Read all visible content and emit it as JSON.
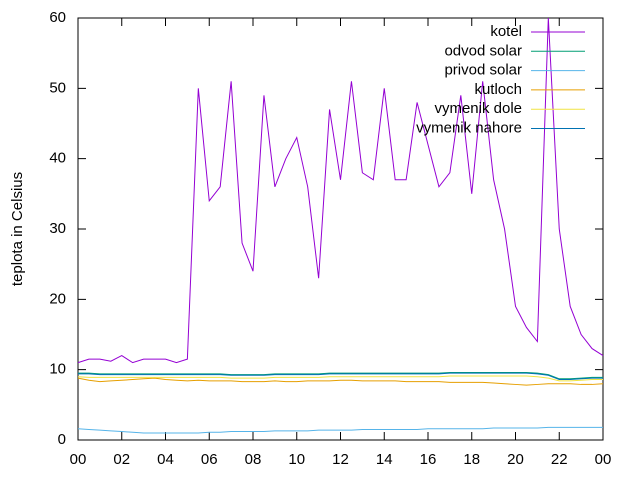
{
  "chart_data": {
    "type": "line",
    "ylabel": "teplota in Celsius",
    "x": [
      0,
      0.5,
      1,
      1.5,
      2,
      2.5,
      3,
      3.5,
      4,
      4.5,
      5,
      5.5,
      6,
      6.5,
      7,
      7.5,
      8,
      8.5,
      9,
      9.5,
      10,
      10.5,
      11,
      11.5,
      12,
      12.5,
      13,
      13.5,
      14,
      14.5,
      15,
      15.5,
      16,
      16.5,
      17,
      17.5,
      18,
      18.5,
      19,
      19.5,
      20,
      20.5,
      21,
      21.5,
      22,
      22.5,
      23,
      23.5,
      24
    ],
    "xlim": [
      0,
      24
    ],
    "xticks": [
      {
        "value": 0,
        "label": "00"
      },
      {
        "value": 2,
        "label": "02"
      },
      {
        "value": 4,
        "label": "04"
      },
      {
        "value": 6,
        "label": "06"
      },
      {
        "value": 8,
        "label": "08"
      },
      10,
      12,
      14,
      16,
      18,
      20,
      22,
      {
        "value": 24,
        "label": "00"
      }
    ],
    "ylim": [
      0,
      60
    ],
    "yticks": [
      0,
      10,
      20,
      30,
      40,
      50,
      60
    ],
    "legend": "top-right",
    "series": [
      {
        "name": "kotel",
        "color": "#9400d3",
        "values": [
          11,
          11.5,
          11.5,
          11.2,
          12,
          11,
          11.5,
          11.5,
          11.5,
          11,
          11.5,
          50,
          34,
          36,
          51,
          28,
          24,
          49,
          36,
          40,
          43,
          36,
          23,
          47,
          37,
          51,
          38,
          37,
          50,
          37,
          37,
          48,
          42,
          36,
          38,
          49,
          35,
          51,
          37,
          30,
          19,
          16,
          14,
          60,
          30,
          19,
          15,
          13,
          12
        ]
      },
      {
        "name": "odvod solar",
        "color": "#009e73",
        "values": [
          9.5,
          9.5,
          9.4,
          9.4,
          9.4,
          9.4,
          9.4,
          9.4,
          9.4,
          9.4,
          9.4,
          9.4,
          9.4,
          9.4,
          9.3,
          9.3,
          9.3,
          9.3,
          9.4,
          9.4,
          9.4,
          9.4,
          9.4,
          9.5,
          9.5,
          9.5,
          9.5,
          9.5,
          9.5,
          9.5,
          9.5,
          9.5,
          9.5,
          9.5,
          9.6,
          9.6,
          9.6,
          9.6,
          9.6,
          9.6,
          9.6,
          9.6,
          9.5,
          9.3,
          8.7,
          8.7,
          8.8,
          8.9,
          8.9
        ]
      },
      {
        "name": "privod solar",
        "color": "#56b4e9",
        "values": [
          1.6,
          1.5,
          1.4,
          1.3,
          1.2,
          1.1,
          1.0,
          1.0,
          1.0,
          1.0,
          1.0,
          1.0,
          1.1,
          1.1,
          1.2,
          1.2,
          1.2,
          1.2,
          1.3,
          1.3,
          1.3,
          1.3,
          1.4,
          1.4,
          1.4,
          1.4,
          1.5,
          1.5,
          1.5,
          1.5,
          1.5,
          1.5,
          1.6,
          1.6,
          1.6,
          1.6,
          1.6,
          1.6,
          1.7,
          1.7,
          1.7,
          1.7,
          1.7,
          1.8,
          1.8,
          1.8,
          1.8,
          1.8,
          1.8
        ]
      },
      {
        "name": "kutloch",
        "color": "#e69f00",
        "values": [
          8.8,
          8.5,
          8.3,
          8.4,
          8.5,
          8.6,
          8.7,
          8.8,
          8.6,
          8.5,
          8.4,
          8.5,
          8.4,
          8.4,
          8.4,
          8.3,
          8.3,
          8.3,
          8.4,
          8.3,
          8.3,
          8.4,
          8.4,
          8.4,
          8.5,
          8.5,
          8.4,
          8.4,
          8.4,
          8.4,
          8.3,
          8.3,
          8.3,
          8.3,
          8.2,
          8.2,
          8.2,
          8.2,
          8.1,
          8.0,
          7.9,
          7.8,
          7.9,
          8.0,
          8.0,
          8.0,
          7.9,
          7.9,
          8.0
        ]
      },
      {
        "name": "vymenik dole",
        "color": "#f0e442",
        "values": [
          9.0,
          8.9,
          8.9,
          8.9,
          8.9,
          8.9,
          8.9,
          8.9,
          8.9,
          8.9,
          8.9,
          8.9,
          8.9,
          8.9,
          8.8,
          8.8,
          8.8,
          8.8,
          8.9,
          8.9,
          8.9,
          8.9,
          8.9,
          9.0,
          9.0,
          9.0,
          9.0,
          9.0,
          9.0,
          9.0,
          9.0,
          9.0,
          9.0,
          9.0,
          9.1,
          9.1,
          9.1,
          9.1,
          9.1,
          9.1,
          9.1,
          9.1,
          9.0,
          8.8,
          8.4,
          8.4,
          8.5,
          8.6,
          8.6
        ]
      },
      {
        "name": "vymenik nahore",
        "color": "#0072b2",
        "values": [
          9.4,
          9.4,
          9.3,
          9.3,
          9.3,
          9.3,
          9.3,
          9.3,
          9.3,
          9.3,
          9.3,
          9.3,
          9.3,
          9.3,
          9.2,
          9.2,
          9.2,
          9.2,
          9.3,
          9.3,
          9.3,
          9.3,
          9.3,
          9.4,
          9.4,
          9.4,
          9.4,
          9.4,
          9.4,
          9.4,
          9.4,
          9.4,
          9.4,
          9.4,
          9.5,
          9.5,
          9.5,
          9.5,
          9.5,
          9.5,
          9.5,
          9.5,
          9.4,
          9.2,
          8.6,
          8.6,
          8.7,
          8.8,
          8.8
        ]
      }
    ]
  }
}
